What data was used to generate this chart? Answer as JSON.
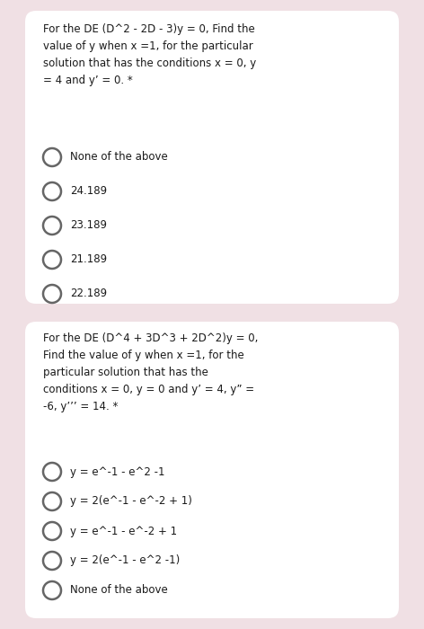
{
  "bg_color": "#f0e0e4",
  "card_color": "#ffffff",
  "text_color": "#1a1a1a",
  "circle_color": "#666666",
  "fig_width": 4.72,
  "fig_height": 7.0,
  "dpi": 100,
  "question1": {
    "text": "For the DE (D^2 - 2D - 3)y = 0, Find the\nvalue of y when x =1, for the particular\nsolution that has the conditions x = 0, y\n= 4 and y’ = 0. *",
    "options": [
      "None of the above",
      "24.189",
      "23.189",
      "21.189",
      "22.189"
    ]
  },
  "question2": {
    "text": "For the DE (D^4 + 3D^3 + 2D^2)y = 0,\nFind the value of y when x =1, for the\nparticular solution that has the\nconditions x = 0, y = 0 and y’ = 4, y” =\n-6, y’’’ = 14. *",
    "options": [
      "y = e^-1 - e^2 -1",
      "y = 2(e^-1 - e^-2 + 1)",
      "y = e^-1 - e^-2 + 1",
      "y = 2(e^-1 - e^2 -1)",
      "None of the above"
    ]
  }
}
